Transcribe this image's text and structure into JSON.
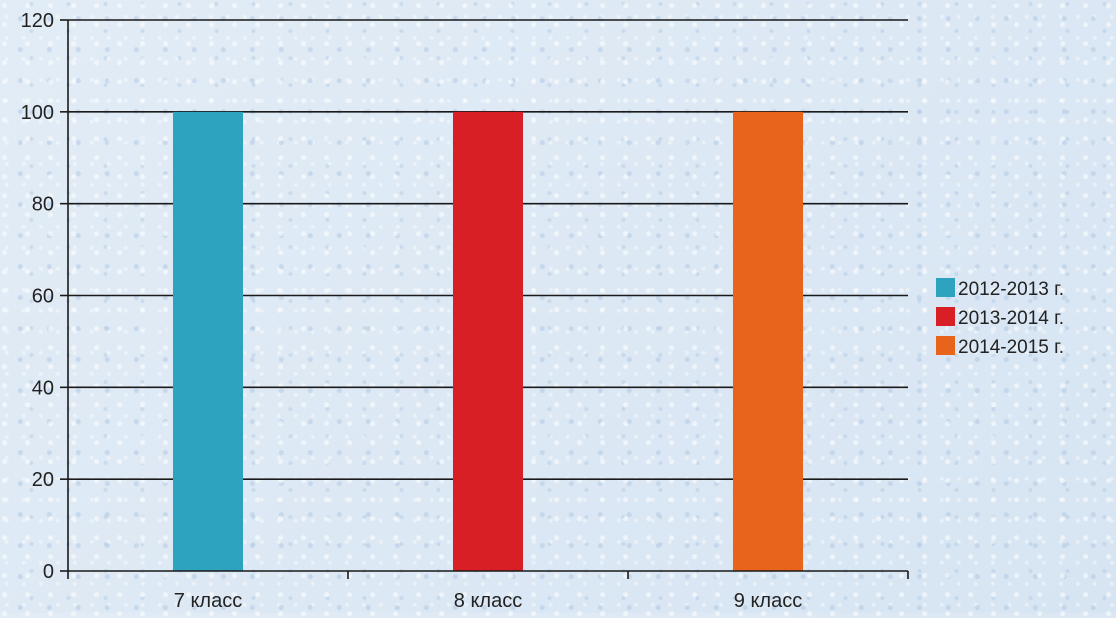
{
  "chart_data": {
    "type": "bar",
    "categories": [
      "7 класс",
      "8 класс",
      "9 класс"
    ],
    "series": [
      {
        "name": "2012-2013 г.",
        "color": "#2ea3bf",
        "values": [
          100,
          null,
          null
        ]
      },
      {
        "name": "2013-2014 г.",
        "color": "#d91f26",
        "values": [
          null,
          100,
          null
        ]
      },
      {
        "name": "2014-2015 г.",
        "color": "#e8641a",
        "values": [
          null,
          null,
          100
        ]
      }
    ],
    "yticks": [
      0,
      20,
      40,
      60,
      80,
      100,
      120
    ],
    "ylim": [
      0,
      120
    ],
    "grid": true,
    "legend_position": "right",
    "title": "",
    "xlabel": "",
    "ylabel": ""
  }
}
